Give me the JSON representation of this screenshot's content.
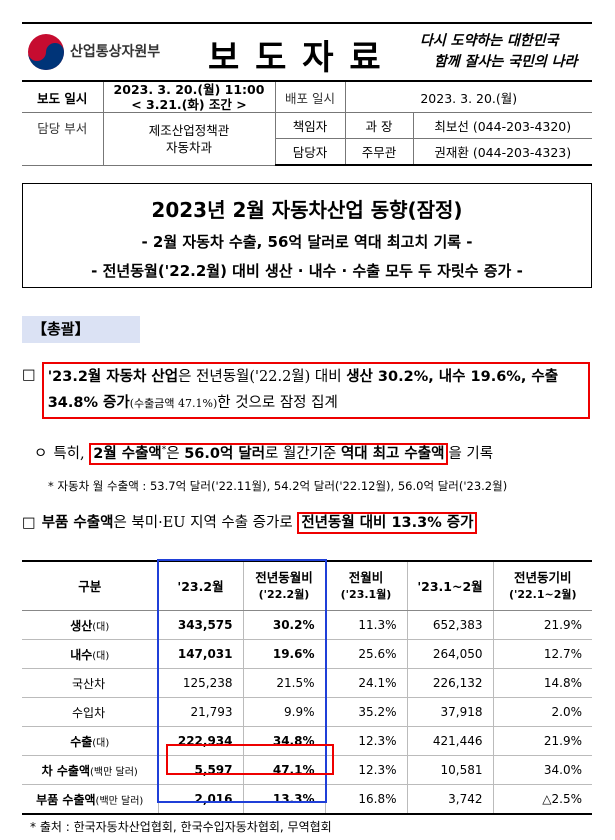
{
  "header": {
    "ministry": "산업통상자원부",
    "title": "보 도 자 료",
    "slogan": [
      "다시 도약하는 대한민국",
      "함께 잘사는 국민의 나라"
    ]
  },
  "info": {
    "release_label": "보도 일시",
    "release_date": "2023. 3. 20.(월) 11:00",
    "release_note": "< 3.21.(화) 조간 >",
    "distribution_label": "배포 일시",
    "distribution_date": "2023. 3. 20.(월)",
    "department_label": "담당 부서",
    "department": [
      "제조산업정책관",
      "자동차과"
    ],
    "manager_label": "책임자",
    "manager_title": "과 장",
    "manager": "최보선 (044-203-4320)",
    "staff_label": "담당자",
    "staff_title": "주무관",
    "staff": "권재환 (044-203-4323)"
  },
  "headline": {
    "title": "2023년 2월 자동차산업 동향(잠정)",
    "subtitles": [
      "- 2월 자동차 수출, 56억 달러로 역대 최고치 기록 -",
      "- 전년동월('22.2월) 대비 생산 · 내수 · 수출 모두 두 자릿수 증가 -"
    ]
  },
  "section": "【총괄】",
  "bullets": [
    {
      "marker": "□",
      "before": [],
      "boxed": [
        {
          "text": "'23.2월 자동차 산업",
          "style": "bold"
        },
        {
          "text": "은 전년동월('22.2월) 대비 ",
          "style": "normal"
        },
        {
          "text": "생산 30.2%, 내수 19.6%, 수출 34.8% 증가",
          "style": "bold"
        },
        {
          "text": "(수출금액 47.1%)",
          "style": "small"
        },
        {
          "text": "한 것으로 잠정 집계",
          "style": "normal"
        }
      ],
      "after": []
    },
    {
      "marker": "ㅇ",
      "before": [
        {
          "text": "특히, ",
          "style": "normal"
        }
      ],
      "boxed": [
        {
          "text": "2월 수출액",
          "style": "bold"
        },
        {
          "text": "*",
          "style": "sup"
        },
        {
          "text": "은 ",
          "style": "normal"
        },
        {
          "text": "56.0억 달러",
          "style": "bold"
        },
        {
          "text": "로 월간기준 ",
          "style": "normal"
        },
        {
          "text": "역대 최고 수출액",
          "style": "bold"
        }
      ],
      "after": [
        {
          "text": "을 기록",
          "style": "normal"
        }
      ]
    },
    {
      "marker": "□",
      "before": [
        {
          "text": "부품 수출액",
          "style": "bold"
        },
        {
          "text": "은 북미·EU 지역 수출 증가로 ",
          "style": "normal"
        }
      ],
      "boxed": [
        {
          "text": "전년동월 대비 13.3% 증가",
          "style": "bold"
        }
      ],
      "after": []
    }
  ],
  "note": "* 자동차 월 수출액 : 53.7억 달러('22.11월), 54.2억 달러('22.12월), 56.0억 달러('23.2월)",
  "table": {
    "columns": [
      {
        "title": "구분"
      },
      {
        "title": "'23.2월"
      },
      {
        "title": "전년동월비",
        "sub": "('22.2월)"
      },
      {
        "title": "전월비",
        "sub": "('23.1월)"
      },
      {
        "title": "'23.1~2월"
      },
      {
        "title": "전년동기비",
        "sub": "('22.1~2월)"
      }
    ],
    "rows": [
      {
        "label": "생산",
        "unit": "(대)",
        "cells": [
          "343,575",
          "30.2%",
          "11.3%",
          "652,383",
          "21.9%"
        ]
      },
      {
        "label": "내수",
        "unit": "(대)",
        "cells": [
          "147,031",
          "19.6%",
          "25.6%",
          "264,050",
          "12.7%"
        ]
      },
      {
        "label": "국산차",
        "sub": true,
        "cells": [
          "125,238",
          "21.5%",
          "24.1%",
          "226,132",
          "14.8%"
        ]
      },
      {
        "label": "수입차",
        "sub": true,
        "cells": [
          "21,793",
          "9.9%",
          "35.2%",
          "37,918",
          "2.0%"
        ]
      },
      {
        "label": "수출",
        "unit": "(대)",
        "cells": [
          "222,934",
          "34.8%",
          "12.3%",
          "421,446",
          "21.9%"
        ]
      },
      {
        "label": "차 수출액",
        "unit": "(백만 달러)",
        "cells": [
          "5,597",
          "47.1%",
          "12.3%",
          "10,581",
          "34.0%"
        ]
      },
      {
        "label": "부품 수출액",
        "unit": "(백만 달러)",
        "cells": [
          "2,016",
          "13.3%",
          "16.8%",
          "3,742",
          "△2.5%"
        ]
      }
    ]
  },
  "source": "* 출처 : 한국자동차산업협회, 한국수입자동차협회, 무역협회"
}
